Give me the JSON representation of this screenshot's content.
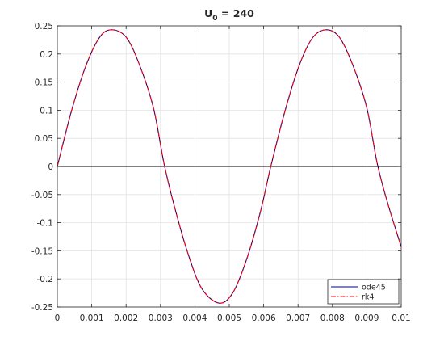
{
  "chart_data": {
    "type": "line",
    "title": "U",
    "title_subscript": "0",
    "title_suffix": " = 240",
    "xlabel": "",
    "ylabel": "",
    "xlim": [
      0,
      0.01
    ],
    "ylim": [
      -0.25,
      0.25
    ],
    "grid": true,
    "legend_position": "bottom-right",
    "x_ticks": [
      0,
      0.001,
      0.002,
      0.003,
      0.004,
      0.005,
      0.006,
      0.007,
      0.008,
      0.009,
      0.01
    ],
    "x_tick_labels": [
      "0",
      "0.001",
      "0.002",
      "0.003",
      "0.004",
      "0.005",
      "0.006",
      "0.007",
      "0.008",
      "0.009",
      "0.01"
    ],
    "y_ticks": [
      -0.25,
      -0.2,
      -0.15,
      -0.1,
      -0.05,
      0,
      0.05,
      0.1,
      0.15,
      0.2,
      0.25
    ],
    "y_tick_labels": [
      "-0.25",
      "-0.2",
      "-0.15",
      "-0.1",
      "-0.05",
      "0",
      "0.05",
      "0.1",
      "0.15",
      "0.2",
      "0.25"
    ],
    "series": [
      {
        "name": "ode45",
        "color": "#00008b",
        "style": "solid",
        "x": [
          0,
          0.0004,
          0.0008,
          0.0012,
          0.00155,
          0.002,
          0.0024,
          0.0028,
          0.0031,
          0.0034,
          0.0038,
          0.0042,
          0.0047,
          0.0051,
          0.0055,
          0.0059,
          0.0062,
          0.0066,
          0.007,
          0.0074,
          0.0078,
          0.0082,
          0.0086,
          0.009,
          0.0093,
          0.0096,
          0.01
        ],
        "y": [
          0,
          0.096,
          0.174,
          0.227,
          0.243,
          0.23,
          0.179,
          0.103,
          0.006,
          -0.07,
          -0.155,
          -0.217,
          -0.243,
          -0.225,
          -0.166,
          -0.082,
          -0.002,
          0.094,
          0.174,
          0.227,
          0.243,
          0.23,
          0.179,
          0.104,
          0.006,
          -0.064,
          -0.143
        ]
      },
      {
        "name": "rk4",
        "color": "#ff0000",
        "style": "dash-dot",
        "x": [
          0,
          0.0004,
          0.0008,
          0.0012,
          0.00155,
          0.002,
          0.0024,
          0.0028,
          0.0031,
          0.0034,
          0.0038,
          0.0042,
          0.0047,
          0.0051,
          0.0055,
          0.0059,
          0.0062,
          0.0066,
          0.007,
          0.0074,
          0.0078,
          0.0082,
          0.0086,
          0.009,
          0.0093,
          0.0096,
          0.01
        ],
        "y": [
          0,
          0.096,
          0.174,
          0.227,
          0.243,
          0.23,
          0.179,
          0.103,
          0.006,
          -0.07,
          -0.155,
          -0.217,
          -0.243,
          -0.225,
          -0.166,
          -0.082,
          -0.002,
          0.094,
          0.174,
          0.227,
          0.243,
          0.23,
          0.179,
          0.104,
          0.006,
          -0.064,
          -0.143
        ]
      }
    ],
    "reference_lines": [
      {
        "axis": "y",
        "value": 0,
        "color": "#000000"
      }
    ]
  }
}
